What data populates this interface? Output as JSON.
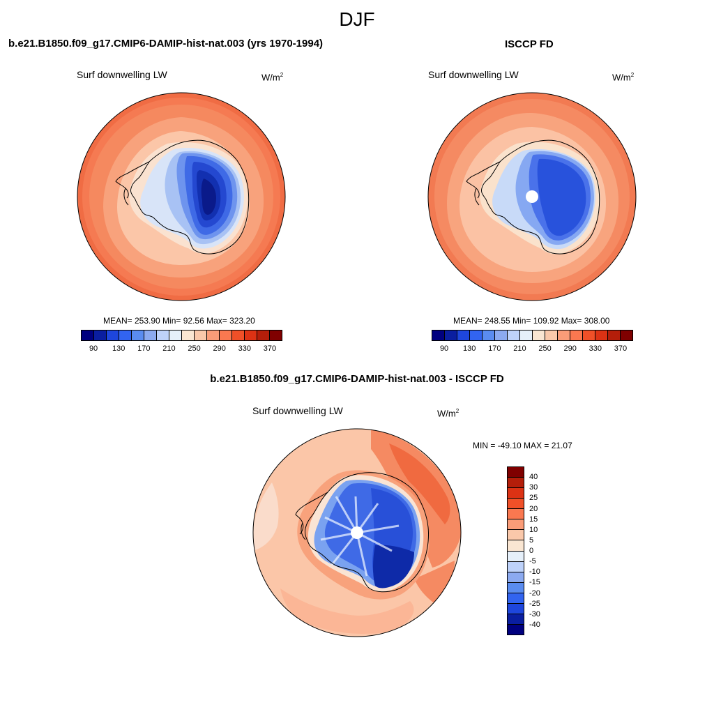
{
  "figure": {
    "title": "DJF"
  },
  "panel_model": {
    "title": "b.e21.B1850.f09_g17.CMIP6-DAMIP-hist-nat.003 (yrs 1970-1994)",
    "variable": "Surf downwelling LW",
    "units": "W/m",
    "units_exp": "2",
    "stats": "MEAN= 253.90  Min=  92.56  Max= 323.20",
    "mean": 253.9,
    "min": 92.56,
    "max": 323.2
  },
  "panel_obs": {
    "title": "ISCCP FD",
    "variable": "Surf downwelling LW",
    "units": "W/m",
    "units_exp": "2",
    "stats": "MEAN= 248.55  Min= 109.92  Max= 308.00",
    "mean": 248.55,
    "min": 109.92,
    "max": 308.0
  },
  "panel_diff": {
    "title": "b.e21.B1850.f09_g17.CMIP6-DAMIP-hist-nat.003 - ISCCP FD",
    "variable": "Surf downwelling LW",
    "units": "W/m",
    "units_exp": "2",
    "stats": "MIN = -49.10 MAX =  21.07",
    "min": -49.1,
    "max": 21.07
  },
  "colorbar_abs": {
    "tick_labels": [
      "90",
      "130",
      "170",
      "210",
      "250",
      "290",
      "330",
      "370"
    ],
    "colors": [
      "#00007f",
      "#0a1ea0",
      "#1e46dc",
      "#3264f0",
      "#5a8cf0",
      "#8caaf0",
      "#bed2fa",
      "#e6f0fa",
      "#fae6d2",
      "#fac8aa",
      "#fa9c78",
      "#fa7850",
      "#f05028",
      "#dc3214",
      "#b41e0a",
      "#7f0000"
    ]
  },
  "colorbar_diff": {
    "tick_labels": [
      "40",
      "30",
      "25",
      "20",
      "15",
      "10",
      "5",
      "0",
      "-5",
      "-10",
      "-15",
      "-20",
      "-25",
      "-30",
      "-40"
    ],
    "colors": [
      "#7f0000",
      "#b41e0a",
      "#dc3214",
      "#f05028",
      "#fa7850",
      "#fa9c78",
      "#fac8aa",
      "#fae6d2",
      "#e6f0fa",
      "#bed2fa",
      "#8caaf0",
      "#5a8cf0",
      "#3264f0",
      "#1e46dc",
      "#0a1ea0",
      "#00007f"
    ]
  }
}
